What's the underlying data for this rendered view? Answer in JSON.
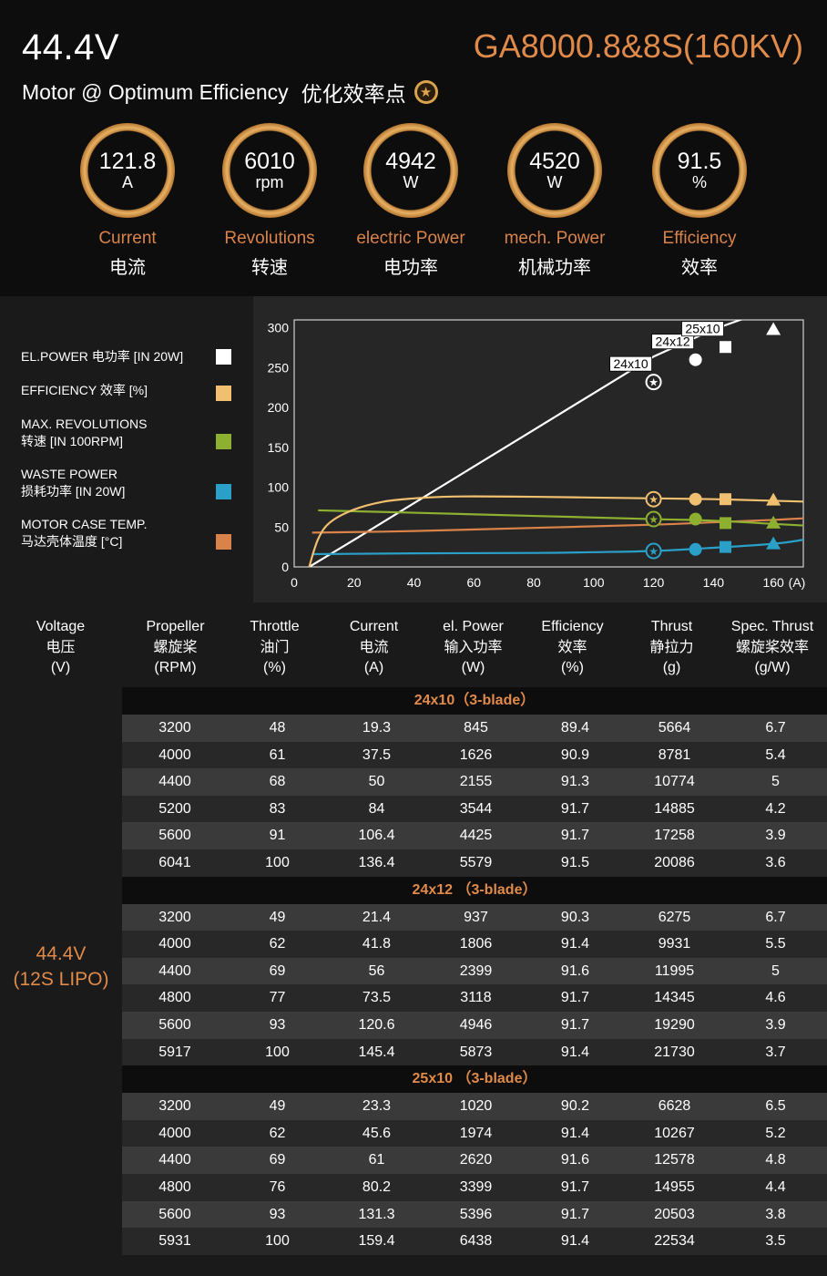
{
  "header": {
    "voltage": "44.4V",
    "model": "GA8000.8&8S(160KV)",
    "subtitle_en": "Motor @ Optimum Efficiency",
    "subtitle_cn": "优化效率点",
    "star_icon": "★"
  },
  "metrics": [
    {
      "value": "121.8",
      "unit": "A",
      "label_en": "Current",
      "label_zh": "电流"
    },
    {
      "value": "6010",
      "unit": "rpm",
      "label_en": "Revolutions",
      "label_zh": "转速"
    },
    {
      "value": "4942",
      "unit": "W",
      "label_en": "electric Power",
      "label_zh": "电功率"
    },
    {
      "value": "4520",
      "unit": "W",
      "label_en": "mech. Power",
      "label_zh": "机械功率"
    },
    {
      "value": "91.5",
      "unit": "%",
      "label_en": "Efficiency",
      "label_zh": "效率"
    }
  ],
  "legend": [
    {
      "line1": "EL.POWER 电功率 [IN 20W]",
      "line2": "",
      "color": "#ffffff"
    },
    {
      "line1": "EFFICIENCY 效率 [%]",
      "line2": "",
      "color": "#f0c070"
    },
    {
      "line1": "MAX. REVOLUTIONS",
      "line2": "转速 [IN 100RPM]",
      "color": "#8db030"
    },
    {
      "line1": "WASTE POWER",
      "line2": "损耗功率 [IN 20W]",
      "color": "#2aa0c8"
    },
    {
      "line1": "MOTOR CASE TEMP.",
      "line2": "马达壳体温度 [°C]",
      "color": "#d9834a"
    }
  ],
  "chart_data": {
    "type": "line",
    "x_unit_label": "(A)",
    "xlim": [
      0,
      170
    ],
    "ylim": [
      0,
      310
    ],
    "x_ticks": [
      0,
      20,
      40,
      60,
      80,
      100,
      120,
      140,
      160
    ],
    "y_ticks": [
      0,
      50,
      100,
      150,
      200,
      250,
      300
    ],
    "grid": false,
    "series": [
      {
        "name": "EL.POWER 电功率 [IN 20W]",
        "color": "#ffffff",
        "x": [
          5,
          20,
          40,
          60,
          80,
          100,
          120,
          140,
          160,
          170
        ],
        "y": [
          0,
          34,
          80,
          126,
          172,
          218,
          264,
          298,
          325,
          332
        ]
      },
      {
        "name": "EFFICIENCY 效率 [%]",
        "color": "#f0c070",
        "x": [
          5,
          8,
          12,
          20,
          30,
          40,
          50,
          60,
          80,
          100,
          120,
          140,
          160,
          170
        ],
        "y": [
          0,
          35,
          56,
          72,
          82,
          86,
          88,
          88.5,
          88,
          87,
          86,
          85,
          83,
          82
        ]
      },
      {
        "name": "MAX. REVOLUTIONS 转速 [IN 100RPM]",
        "color": "#8db030",
        "x": [
          8,
          40,
          80,
          120,
          140,
          160,
          170
        ],
        "y": [
          71,
          68,
          64,
          60,
          58,
          54,
          52
        ]
      },
      {
        "name": "WASTE POWER 损耗功率 [IN 20W]",
        "color": "#2aa0c8",
        "x": [
          6,
          40,
          80,
          100,
          120,
          140,
          160,
          170
        ],
        "y": [
          16,
          17,
          17.5,
          18.5,
          20,
          24,
          29,
          34
        ]
      },
      {
        "name": "MOTOR CASE TEMP. 马达壳体温度 [°C]",
        "color": "#d9834a",
        "x": [
          6,
          40,
          80,
          120,
          140,
          160,
          170
        ],
        "y": [
          43,
          45,
          49,
          53,
          56,
          59,
          61
        ]
      }
    ],
    "markers": [
      {
        "label": "24x10",
        "shape": "star-circle",
        "x": 120,
        "values": [
          232,
          85,
          60,
          20
        ]
      },
      {
        "label": "24x12",
        "shape": "circle",
        "x": 134,
        "values": [
          260,
          85,
          60,
          22
        ]
      },
      {
        "label": "25x10",
        "shape": "square",
        "x": 144,
        "values": [
          276,
          85,
          55,
          25
        ]
      },
      {
        "label": "",
        "shape": "triangle",
        "x": 160,
        "values": [
          298,
          84,
          55,
          29
        ]
      }
    ]
  },
  "table": {
    "headers": [
      {
        "l1": "Voltage",
        "l2": "电压",
        "l3": "(V)"
      },
      {
        "l1": "Propeller",
        "l2": "螺旋桨",
        "l3": "(RPM)"
      },
      {
        "l1": "Throttle",
        "l2": "油门",
        "l3": "(%)"
      },
      {
        "l1": "Current",
        "l2": "电流",
        "l3": "(A)"
      },
      {
        "l1": "el. Power",
        "l2": "输入功率",
        "l3": "(W)"
      },
      {
        "l1": "Efficiency",
        "l2": "效率",
        "l3": "(%)"
      },
      {
        "l1": "Thrust",
        "l2": "静拉力",
        "l3": "(g)"
      },
      {
        "l1": "Spec. Thrust",
        "l2": "螺旋桨效率",
        "l3": "(g/W)"
      }
    ],
    "voltage_line1": "44.4V",
    "voltage_line2": "(12S LIPO)",
    "groups": [
      {
        "title": "24x10（3-blade）",
        "rows": [
          [
            "3200",
            "48",
            "19.3",
            "845",
            "89.4",
            "5664",
            "6.7"
          ],
          [
            "4000",
            "61",
            "37.5",
            "1626",
            "90.9",
            "8781",
            "5.4"
          ],
          [
            "4400",
            "68",
            "50",
            "2155",
            "91.3",
            "10774",
            "5"
          ],
          [
            "5200",
            "83",
            "84",
            "3544",
            "91.7",
            "14885",
            "4.2"
          ],
          [
            "5600",
            "91",
            "106.4",
            "4425",
            "91.7",
            "17258",
            "3.9"
          ],
          [
            "6041",
            "100",
            "136.4",
            "5579",
            "91.5",
            "20086",
            "3.6"
          ]
        ]
      },
      {
        "title": "24x12 （3-blade）",
        "rows": [
          [
            "3200",
            "49",
            "21.4",
            "937",
            "90.3",
            "6275",
            "6.7"
          ],
          [
            "4000",
            "62",
            "41.8",
            "1806",
            "91.4",
            "9931",
            "5.5"
          ],
          [
            "4400",
            "69",
            "56",
            "2399",
            "91.6",
            "11995",
            "5"
          ],
          [
            "4800",
            "77",
            "73.5",
            "3118",
            "91.7",
            "14345",
            "4.6"
          ],
          [
            "5600",
            "93",
            "120.6",
            "4946",
            "91.7",
            "19290",
            "3.9"
          ],
          [
            "5917",
            "100",
            "145.4",
            "5873",
            "91.4",
            "21730",
            "3.7"
          ]
        ]
      },
      {
        "title": "25x10 （3-blade）",
        "rows": [
          [
            "3200",
            "49",
            "23.3",
            "1020",
            "90.2",
            "6628",
            "6.5"
          ],
          [
            "4000",
            "62",
            "45.6",
            "1974",
            "91.4",
            "10267",
            "5.2"
          ],
          [
            "4400",
            "69",
            "61",
            "2620",
            "91.6",
            "12578",
            "4.8"
          ],
          [
            "4800",
            "76",
            "80.2",
            "3399",
            "91.7",
            "14955",
            "4.4"
          ],
          [
            "5600",
            "93",
            "131.3",
            "5396",
            "91.7",
            "20503",
            "3.8"
          ],
          [
            "5931",
            "100",
            "159.4",
            "6438",
            "91.4",
            "22534",
            "3.5"
          ]
        ]
      }
    ]
  }
}
